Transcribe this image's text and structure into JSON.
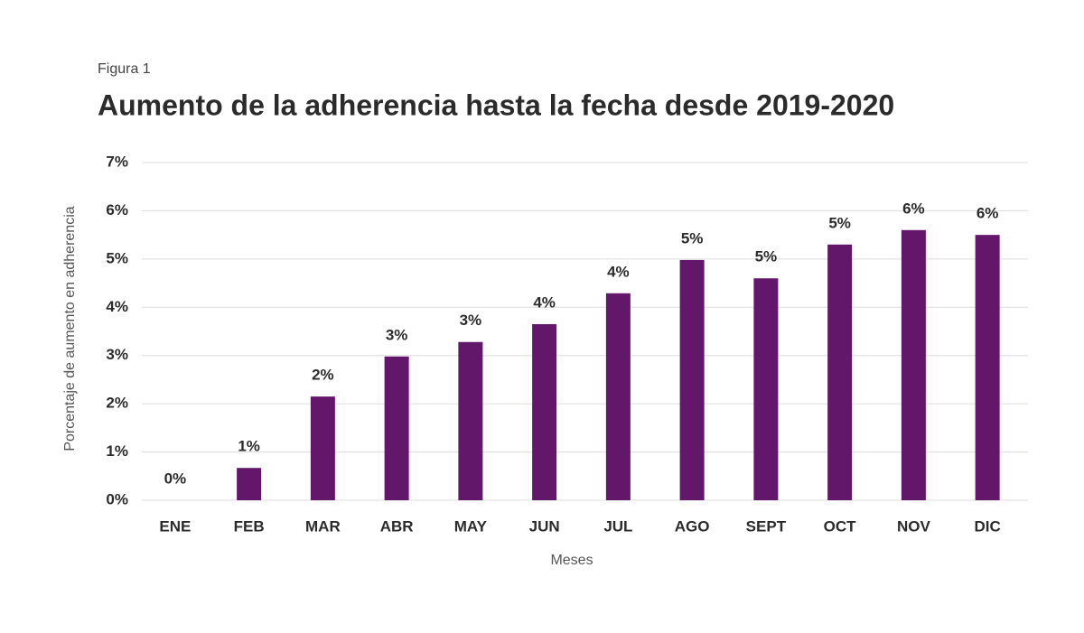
{
  "chart_data": {
    "type": "bar",
    "figure_label": "Figura 1",
    "title": "Aumento de la adherencia hasta la fecha desde 2019-2020",
    "x_label": "Meses",
    "y_label": "Porcentaje de aumento en adherencia",
    "categories": [
      "ENE",
      "FEB",
      "MAR",
      "ABR",
      "MAY",
      "JUN",
      "JUL",
      "AGO",
      "SEPT",
      "OCT",
      "NOV",
      "DIC"
    ],
    "values": [
      0,
      0.67,
      2.15,
      2.98,
      3.28,
      3.65,
      4.29,
      4.98,
      4.6,
      5.3,
      5.6,
      5.5
    ],
    "value_labels": [
      "0%",
      "1%",
      "2%",
      "3%",
      "3%",
      "4%",
      "4%",
      "5%",
      "5%",
      "5%",
      "6%",
      "6%"
    ],
    "color": "#63176b",
    "ylim": [
      0,
      7
    ],
    "yticks": [
      {
        "value": 0,
        "label": "0%"
      },
      {
        "value": 1,
        "label": "1%"
      },
      {
        "value": 2,
        "label": "2%"
      },
      {
        "value": 3,
        "label": "3%"
      },
      {
        "value": 4,
        "label": "4%"
      },
      {
        "value": 5,
        "label": "5%"
      },
      {
        "value": 6,
        "label": "6%"
      },
      {
        "value": 7,
        "label": "7%"
      }
    ],
    "grid": true
  }
}
